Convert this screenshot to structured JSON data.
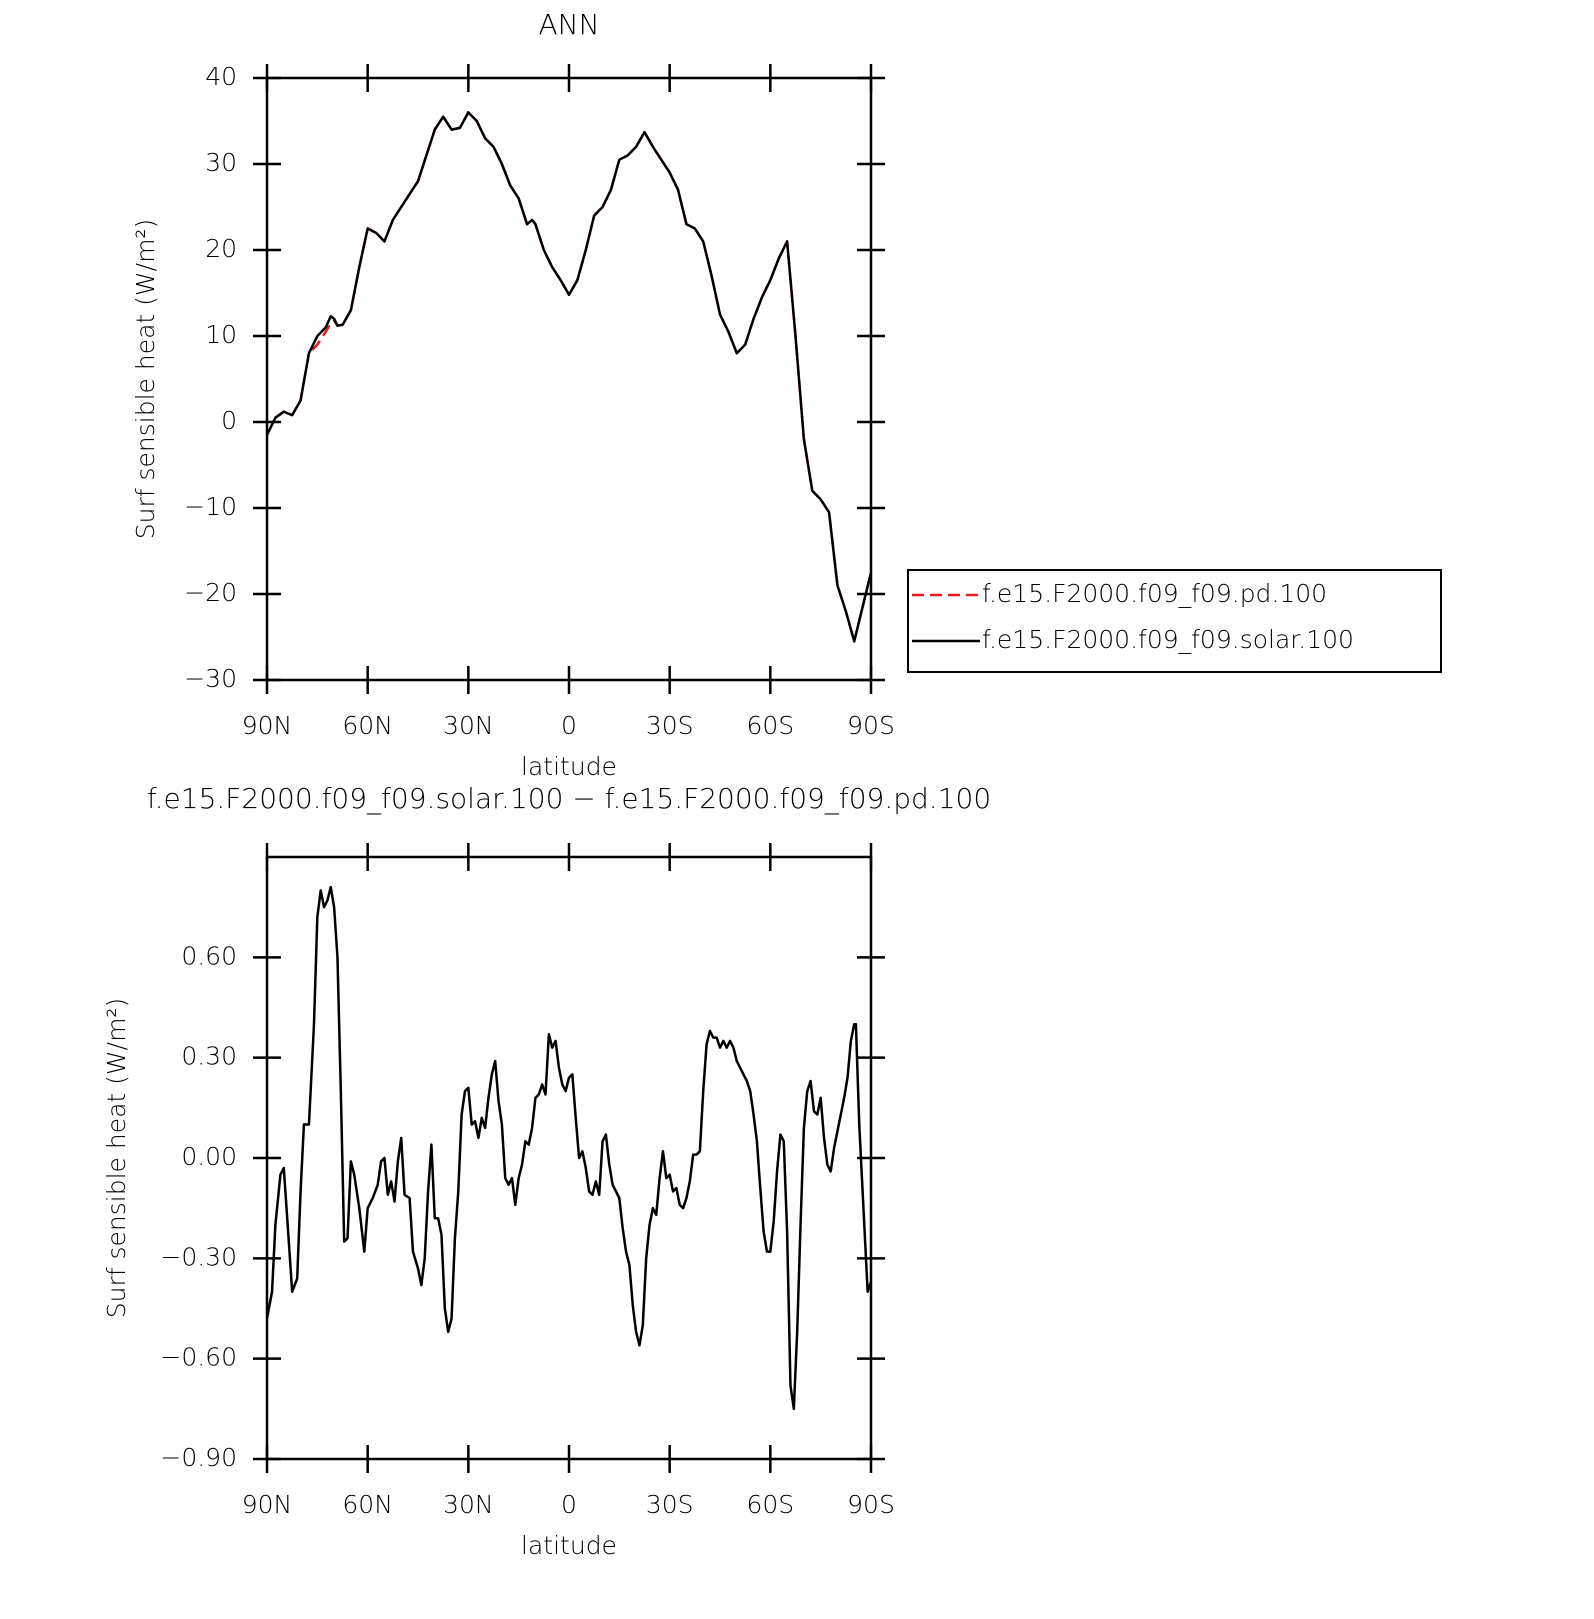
{
  "chart_data": [
    {
      "type": "line",
      "title": "ANN",
      "xlabel": "latitude",
      "ylabel": "Surf sensible heat (W/m²)",
      "x": [
        90,
        87.5,
        85,
        82.5,
        80,
        77.5,
        75,
        72.5,
        71,
        70,
        69,
        67.5,
        65,
        62.5,
        60,
        57.5,
        55,
        52.5,
        50,
        47.5,
        45,
        42.5,
        40,
        37.5,
        35,
        32.5,
        30,
        27.5,
        25,
        22.5,
        20,
        17.5,
        15,
        12.5,
        11,
        10,
        7.5,
        5,
        2.5,
        0,
        -2.5,
        -5,
        -7.5,
        -10,
        -12.5,
        -15,
        -17.5,
        -20,
        -22.5,
        -25,
        -27.5,
        -30,
        -32.5,
        -35,
        -37.5,
        -40,
        -42.5,
        -45,
        -47.5,
        -50,
        -52.5,
        -55,
        -57.5,
        -60,
        -62.5,
        -65,
        -67.5,
        -70,
        -72.5,
        -75,
        -77.5,
        -80,
        -82.5,
        -85,
        -87.5,
        -90
      ],
      "series": [
        {
          "name": "f.e15.F2000.f09_f09.pd.100",
          "color": "#e41a1c",
          "linestyle": "dashed",
          "values": [
            -1.5,
            0.5,
            1.2,
            0.8,
            2.5,
            8,
            9,
            10.5,
            11.5,
            11.8,
            11.2,
            11.3,
            13,
            18,
            22.5,
            22,
            21,
            23.5,
            25,
            26.5,
            28,
            31,
            34,
            35.5,
            34,
            34.2,
            36,
            35,
            33,
            32,
            30,
            27.5,
            26,
            23,
            23.5,
            23,
            20,
            18,
            16.5,
            14.8,
            16.5,
            20,
            24,
            25,
            27,
            30.5,
            31,
            32,
            33.7,
            32,
            30.5,
            29,
            27,
            23,
            22.5,
            21,
            17,
            12.5,
            10.5,
            8,
            9,
            12,
            14.5,
            16.5,
            19,
            21,
            10,
            -2,
            -8,
            -9,
            -10.5,
            -19,
            -22,
            -25.5,
            -21.5,
            -17.5
          ]
        },
        {
          "name": "f.e15.F2000.f09_f09.solar.100",
          "color": "#000000",
          "linestyle": "solid",
          "values": [
            -1.5,
            0.5,
            1.2,
            0.8,
            2.5,
            8,
            10,
            11,
            12.3,
            12,
            11.2,
            11.3,
            13,
            18,
            22.5,
            22,
            21,
            23.5,
            25,
            26.5,
            28,
            31,
            34,
            35.5,
            34,
            34.2,
            36,
            35,
            33,
            32,
            30,
            27.5,
            26,
            23,
            23.5,
            23,
            20,
            18,
            16.5,
            14.8,
            16.5,
            20,
            24,
            25,
            27,
            30.5,
            31,
            32,
            33.7,
            32,
            30.5,
            29,
            27,
            23,
            22.5,
            21,
            17,
            12.5,
            10.5,
            8,
            9,
            12,
            14.5,
            16.5,
            19,
            21,
            10,
            -2,
            -8,
            -9,
            -10.5,
            -19,
            -22,
            -25.5,
            -21.5,
            -17.5
          ]
        }
      ],
      "xlim": [
        90,
        -90
      ],
      "xticks": [
        {
          "value": 90,
          "label": "90N"
        },
        {
          "value": 60,
          "label": "60N"
        },
        {
          "value": 30,
          "label": "30N"
        },
        0,
        {
          "value": -30,
          "label": "30S"
        },
        {
          "value": -60,
          "label": "60S"
        },
        {
          "value": -90,
          "label": "90S"
        }
      ],
      "ylim": [
        -30,
        40
      ],
      "yticks": [
        {
          "value": -30,
          "label": "−30"
        },
        {
          "value": -20,
          "label": "−20"
        },
        {
          "value": -10,
          "label": "−10"
        },
        0,
        10,
        20,
        30,
        40
      ],
      "legend": "right"
    },
    {
      "type": "line",
      "title": "f.e15.F2000.f09_f09.solar.100 − f.e15.F2000.f09_f09.pd.100",
      "xlabel": "latitude",
      "ylabel": "Surf sensible heat (W/m²)",
      "x": [
        90,
        88.5,
        87.5,
        86,
        85,
        83.5,
        82.5,
        81,
        80,
        79,
        77.5,
        76,
        75,
        74,
        73,
        72,
        71,
        70,
        69,
        68,
        67,
        66,
        65,
        64,
        62.5,
        61,
        60,
        58.5,
        57,
        56,
        55,
        54,
        53,
        52,
        51,
        50,
        49,
        47.5,
        46.5,
        45,
        44,
        43,
        42,
        41,
        40,
        39,
        38,
        37,
        36,
        35,
        34,
        33,
        32,
        31,
        30,
        29,
        28,
        27,
        26,
        25,
        24,
        23,
        22,
        21,
        20,
        19,
        18,
        17,
        16,
        15,
        14,
        13,
        12,
        11,
        10,
        9,
        8,
        7,
        6,
        5,
        4,
        3,
        2,
        1,
        0,
        -1,
        -2,
        -3,
        -4,
        -5,
        -6,
        -7,
        -8,
        -9,
        -10,
        -11,
        -12,
        -13,
        -14,
        -15,
        -16,
        -17,
        -18,
        -19,
        -20,
        -21,
        -22,
        -23,
        -24,
        -25,
        -26,
        -27,
        -28,
        -29,
        -30,
        -31,
        -32,
        -33,
        -34,
        -35,
        -36,
        -37,
        -38,
        -39,
        -40,
        -41,
        -42,
        -43,
        -44,
        -45,
        -46,
        -47,
        -48,
        -49,
        -50,
        -51,
        -52,
        -53,
        -54,
        -55,
        -56,
        -57,
        -58,
        -59,
        -60,
        -61,
        -62,
        -63,
        -64,
        -65,
        -66,
        -67,
        -68,
        -69,
        -70,
        -71,
        -72,
        -73,
        -74,
        -75,
        -76,
        -77,
        -78,
        -79,
        -80,
        -81,
        -82,
        -83,
        -84,
        -85,
        -85.5,
        -86.5,
        -88,
        -89,
        -90
      ],
      "series": [
        {
          "color": "#000000",
          "linestyle": "solid",
          "values": [
            -0.48,
            -0.4,
            -0.2,
            -0.05,
            -0.03,
            -0.25,
            -0.4,
            -0.36,
            -0.1,
            0.1,
            0.1,
            0.4,
            0.72,
            0.8,
            0.75,
            0.77,
            0.81,
            0.75,
            0.6,
            0.2,
            -0.25,
            -0.24,
            -0.01,
            -0.05,
            -0.15,
            -0.28,
            -0.15,
            -0.12,
            -0.08,
            -0.01,
            0.0,
            -0.11,
            -0.07,
            -0.13,
            -0.01,
            0.06,
            -0.11,
            -0.12,
            -0.28,
            -0.33,
            -0.38,
            -0.3,
            -0.1,
            0.04,
            -0.18,
            -0.18,
            -0.23,
            -0.45,
            -0.52,
            -0.48,
            -0.24,
            -0.1,
            0.13,
            0.2,
            0.21,
            0.1,
            0.11,
            0.06,
            0.12,
            0.09,
            0.18,
            0.25,
            0.29,
            0.17,
            0.1,
            -0.06,
            -0.08,
            -0.06,
            -0.14,
            -0.06,
            -0.02,
            0.05,
            0.04,
            0.09,
            0.18,
            0.19,
            0.22,
            0.19,
            0.37,
            0.33,
            0.35,
            0.27,
            0.22,
            0.2,
            0.24,
            0.25,
            0.12,
            0.0,
            0.02,
            -0.03,
            -0.1,
            -0.11,
            -0.07,
            -0.11,
            0.05,
            0.07,
            -0.02,
            -0.08,
            -0.1,
            -0.12,
            -0.21,
            -0.28,
            -0.32,
            -0.44,
            -0.52,
            -0.56,
            -0.5,
            -0.3,
            -0.2,
            -0.15,
            -0.17,
            -0.06,
            0.02,
            -0.06,
            -0.05,
            -0.1,
            -0.09,
            -0.14,
            -0.15,
            -0.12,
            -0.07,
            0.01,
            0.01,
            0.02,
            0.2,
            0.34,
            0.38,
            0.36,
            0.36,
            0.33,
            0.35,
            0.33,
            0.35,
            0.33,
            0.29,
            0.27,
            0.25,
            0.23,
            0.2,
            0.13,
            0.05,
            -0.09,
            -0.22,
            -0.28,
            -0.28,
            -0.19,
            -0.04,
            0.07,
            0.05,
            -0.22,
            -0.68,
            -0.75,
            -0.52,
            -0.2,
            0.09,
            0.2,
            0.23,
            0.14,
            0.13,
            0.18,
            0.06,
            -0.02,
            -0.04,
            0.03,
            0.08,
            0.13,
            0.18,
            0.24,
            0.35,
            0.4,
            0.4,
            0.1,
            -0.2,
            -0.4,
            -0.37
          ]
        }
      ],
      "xlim": [
        90,
        -90
      ],
      "xticks": [
        {
          "value": 90,
          "label": "90N"
        },
        {
          "value": 60,
          "label": "60N"
        },
        {
          "value": 30,
          "label": "30N"
        },
        0,
        {
          "value": -30,
          "label": "30S"
        },
        {
          "value": -60,
          "label": "60S"
        },
        {
          "value": -90,
          "label": "90S"
        }
      ],
      "ylim": [
        -0.9,
        0.9
      ],
      "yticks": [
        {
          "value": -0.9,
          "label": "−0.90"
        },
        {
          "value": -0.6,
          "label": "−0.60"
        },
        {
          "value": -0.3,
          "label": "−0.30"
        },
        {
          "value": 0,
          "label": "0.00"
        },
        {
          "value": 0.3,
          "label": "0.30"
        },
        {
          "value": 0.6,
          "label": "0.60"
        }
      ]
    }
  ]
}
